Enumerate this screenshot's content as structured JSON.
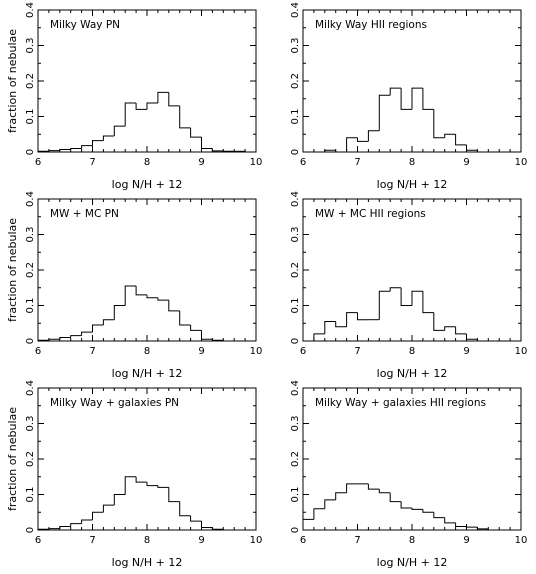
{
  "chart_data": [
    {
      "type": "histogram",
      "label": "Milky Way   PN",
      "xlabel": "log N/H + 12",
      "ylabel": "fraction of nebulae",
      "xlim": [
        6,
        10
      ],
      "ylim": [
        0,
        0.4
      ],
      "xticks": [
        "6",
        "7",
        "8",
        "9",
        "10"
      ],
      "yticks": [
        "0",
        "0.1",
        "0.2",
        "0.3",
        "0.4"
      ],
      "bin_width": 0.2,
      "bins_start": [
        6.0,
        6.2,
        6.4,
        6.6,
        6.8,
        7.0,
        7.2,
        7.4,
        7.6,
        7.8,
        8.0,
        8.2,
        8.4,
        8.6,
        8.8,
        9.0,
        9.2,
        9.4,
        9.6,
        9.8
      ],
      "values": [
        0.002,
        0.004,
        0.007,
        0.01,
        0.018,
        0.032,
        0.045,
        0.073,
        0.138,
        0.12,
        0.138,
        0.168,
        0.13,
        0.068,
        0.042,
        0.01,
        0.003,
        0.002,
        0.002,
        0.0
      ]
    },
    {
      "type": "histogram",
      "label": "Milky Way   HII regions",
      "xlabel": "log N/H + 12",
      "ylabel": "",
      "xlim": [
        6,
        10
      ],
      "ylim": [
        0,
        0.4
      ],
      "xticks": [
        "6",
        "7",
        "8",
        "9",
        "10"
      ],
      "yticks": [
        "0",
        "0.1",
        "0.2",
        "0.3",
        "0.4"
      ],
      "bin_width": 0.2,
      "bins_start": [
        6.0,
        6.2,
        6.4,
        6.6,
        6.8,
        7.0,
        7.2,
        7.4,
        7.6,
        7.8,
        8.0,
        8.2,
        8.4,
        8.6,
        8.8,
        9.0,
        9.2,
        9.4,
        9.6,
        9.8
      ],
      "values": [
        0.0,
        0.0,
        0.005,
        0.0,
        0.04,
        0.03,
        0.06,
        0.16,
        0.18,
        0.12,
        0.18,
        0.12,
        0.04,
        0.05,
        0.02,
        0.005,
        0.0,
        0.0,
        0.0,
        0.0
      ]
    },
    {
      "type": "histogram",
      "label": "MW + MC PN",
      "xlabel": "log N/H + 12",
      "ylabel": "fraction of nebulae",
      "xlim": [
        6,
        10
      ],
      "ylim": [
        0,
        0.4
      ],
      "xticks": [
        "6",
        "7",
        "8",
        "9",
        "10"
      ],
      "yticks": [
        "0",
        "0.1",
        "0.2",
        "0.3",
        "0.4"
      ],
      "bin_width": 0.2,
      "bins_start": [
        6.0,
        6.2,
        6.4,
        6.6,
        6.8,
        7.0,
        7.2,
        7.4,
        7.6,
        7.8,
        8.0,
        8.2,
        8.4,
        8.6,
        8.8,
        9.0,
        9.2,
        9.4,
        9.6,
        9.8
      ],
      "values": [
        0.002,
        0.005,
        0.01,
        0.015,
        0.025,
        0.045,
        0.06,
        0.1,
        0.155,
        0.13,
        0.122,
        0.115,
        0.085,
        0.045,
        0.03,
        0.005,
        0.002,
        0.0,
        0.0,
        0.0
      ]
    },
    {
      "type": "histogram",
      "label": "MW + MC HII regions",
      "xlabel": "log N/H + 12",
      "ylabel": "",
      "xlim": [
        6,
        10
      ],
      "ylim": [
        0,
        0.4
      ],
      "xticks": [
        "6",
        "7",
        "8",
        "9",
        "10"
      ],
      "yticks": [
        "0",
        "0.1",
        "0.2",
        "0.3",
        "0.4"
      ],
      "bin_width": 0.2,
      "bins_start": [
        6.0,
        6.2,
        6.4,
        6.6,
        6.8,
        7.0,
        7.2,
        7.4,
        7.6,
        7.8,
        8.0,
        8.2,
        8.4,
        8.6,
        8.8,
        9.0,
        9.2,
        9.4,
        9.6,
        9.8
      ],
      "values": [
        0.0,
        0.02,
        0.055,
        0.04,
        0.08,
        0.06,
        0.06,
        0.14,
        0.15,
        0.1,
        0.14,
        0.08,
        0.03,
        0.04,
        0.02,
        0.005,
        0.0,
        0.0,
        0.0,
        0.0
      ]
    },
    {
      "type": "histogram",
      "label": "Milky Way + galaxies   PN",
      "xlabel": "log N/H + 12",
      "ylabel": "fraction of nebulae",
      "xlim": [
        6,
        10
      ],
      "ylim": [
        0,
        0.4
      ],
      "xticks": [
        "6",
        "7",
        "8",
        "9",
        "10"
      ],
      "yticks": [
        "0",
        "0.1",
        "0.2",
        "0.3",
        "0.4"
      ],
      "bin_width": 0.2,
      "bins_start": [
        6.0,
        6.2,
        6.4,
        6.6,
        6.8,
        7.0,
        7.2,
        7.4,
        7.6,
        7.8,
        8.0,
        8.2,
        8.4,
        8.6,
        8.8,
        9.0,
        9.2,
        9.4,
        9.6,
        9.8
      ],
      "values": [
        0.002,
        0.004,
        0.01,
        0.018,
        0.028,
        0.05,
        0.07,
        0.1,
        0.15,
        0.135,
        0.125,
        0.12,
        0.08,
        0.04,
        0.025,
        0.007,
        0.002,
        0.0,
        0.0,
        0.0
      ]
    },
    {
      "type": "histogram",
      "label": "Milky Way + galaxies   HII regions",
      "xlabel": "log N/H + 12",
      "ylabel": "",
      "xlim": [
        6,
        10
      ],
      "ylim": [
        0,
        0.4
      ],
      "xticks": [
        "6",
        "7",
        "8",
        "9",
        "10"
      ],
      "yticks": [
        "0",
        "0.1",
        "0.2",
        "0.3",
        "0.4"
      ],
      "bin_width": 0.2,
      "bins_start": [
        6.0,
        6.2,
        6.4,
        6.6,
        6.8,
        7.0,
        7.2,
        7.4,
        7.6,
        7.8,
        8.0,
        8.2,
        8.4,
        8.6,
        8.8,
        9.0,
        9.2,
        9.4,
        9.6,
        9.8
      ],
      "values": [
        0.03,
        0.06,
        0.085,
        0.105,
        0.13,
        0.13,
        0.115,
        0.105,
        0.08,
        0.062,
        0.058,
        0.05,
        0.035,
        0.02,
        0.01,
        0.008,
        0.003,
        0.0,
        0.0,
        0.0
      ]
    }
  ]
}
